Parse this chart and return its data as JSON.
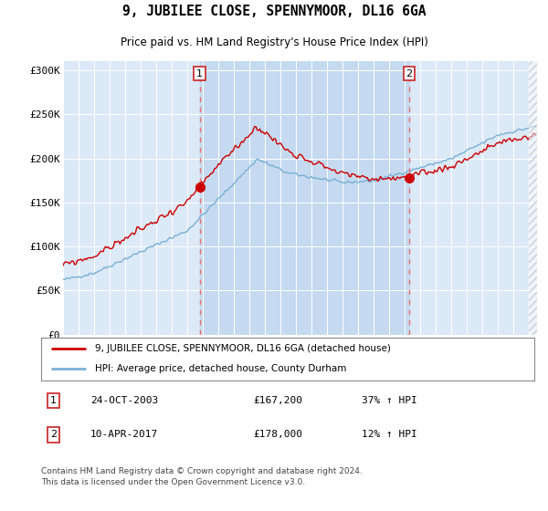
{
  "title": "9, JUBILEE CLOSE, SPENNYMOOR, DL16 6GA",
  "subtitle": "Price paid vs. HM Land Registry's House Price Index (HPI)",
  "background_color": "#ffffff",
  "plot_bg_color": "#dce9f7",
  "shade_between_color": "#c5daf0",
  "red_line_color": "#cc0000",
  "blue_line_color": "#7ab0d4",
  "legend_line1": "9, JUBILEE CLOSE, SPENNYMOOR, DL16 6GA (detached house)",
  "legend_line2": "HPI: Average price, detached house, County Durham",
  "footer": "Contains HM Land Registry data © Crown copyright and database right 2024.\nThis data is licensed under the Open Government Licence v3.0.",
  "xmin": 1995.0,
  "xmax": 2025.5,
  "ymin": 0,
  "ymax": 310000,
  "yticks": [
    0,
    50000,
    100000,
    150000,
    200000,
    250000,
    300000
  ],
  "ytick_labels": [
    "£0",
    "£50K",
    "£100K",
    "£150K",
    "£200K",
    "£250K",
    "£300K"
  ],
  "sale1_t": 2003.79,
  "sale2_t": 2017.27,
  "sale1_price": 167200,
  "sale2_price": 178000
}
